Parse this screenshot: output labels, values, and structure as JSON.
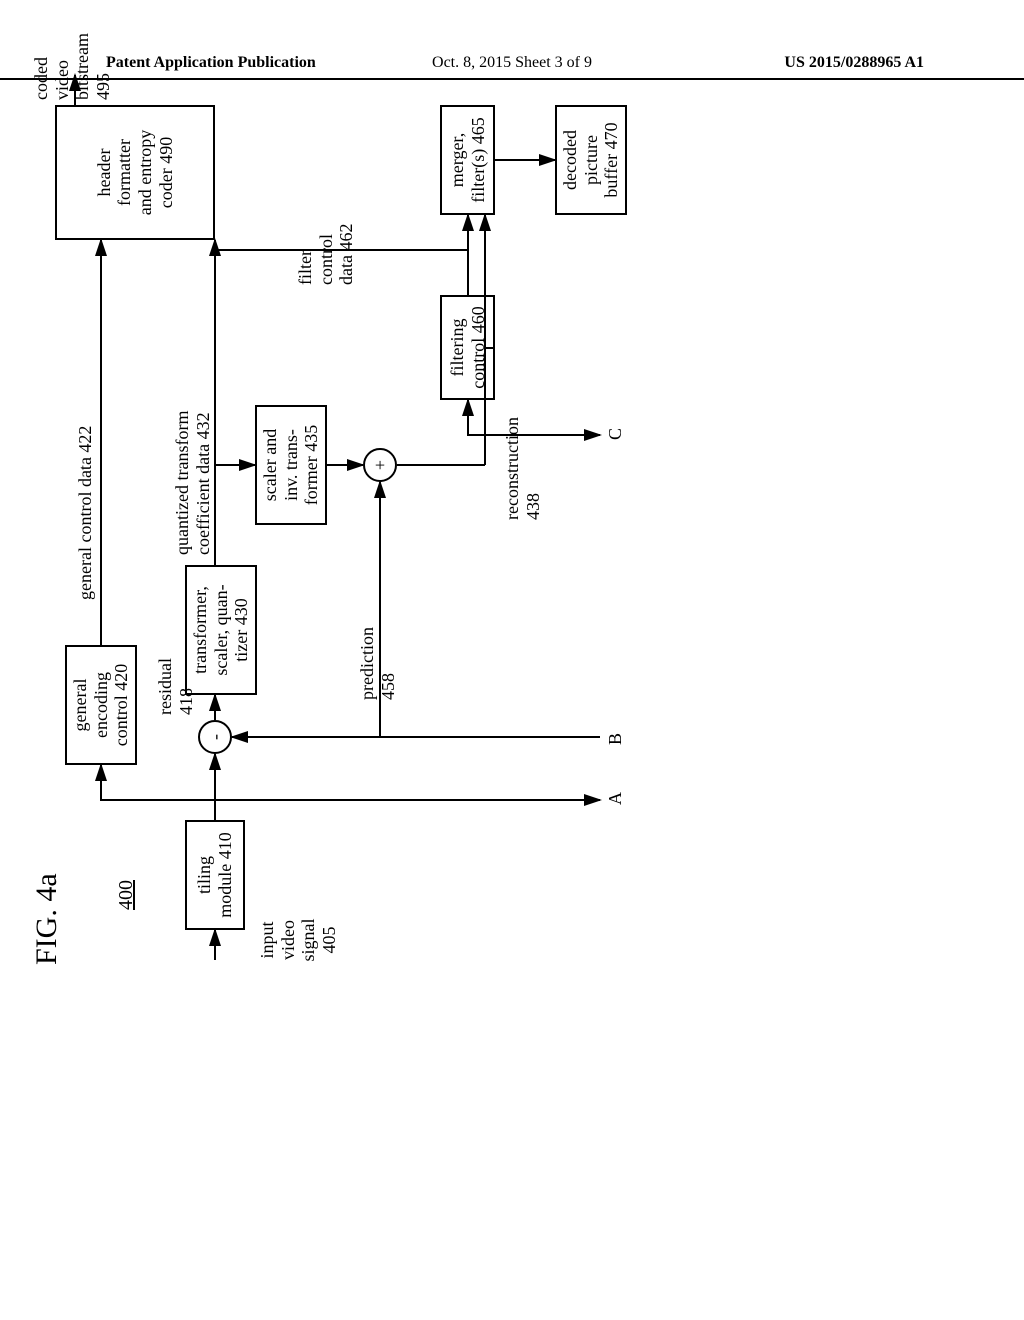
{
  "header": {
    "left": "Patent Application Publication",
    "center": "Oct. 8, 2015   Sheet 3 of 9",
    "right": "US 2015/0288965 A1"
  },
  "figure": {
    "title": "FIG. 4a",
    "ref": "400"
  },
  "blocks": {
    "tiling": "tiling\nmodule 410",
    "gec": "general\nencoding\ncontrol 420",
    "tsq": "transformer,\nscaler, quan-\ntizer 430",
    "sit": "scaler and\ninv. trans-\nformer 435",
    "fc": "filtering\ncontrol 460",
    "mf": "merger,\nfilter(s) 465",
    "dpb": "decoded\npicture\nbuffer 470",
    "hfe": "header\nformatter\nand entropy\ncoder 490"
  },
  "labels": {
    "input": "input\nvideo\nsignal\n405",
    "gcd": "general control data 422",
    "qtcd": "quantized transform\ncoefficient data 432",
    "residual": "residual\n418",
    "prediction": "prediction\n458",
    "fcd": "filter\ncontrol\ndata 462",
    "recon": "reconstruction\n438",
    "cvb": "coded\nvideo\nbitstream\n495",
    "A": "A",
    "B": "B",
    "C": "C"
  },
  "nodes": {
    "minus": "-",
    "plus": "+"
  },
  "style": {
    "page_bg": "#ffffff",
    "ink": "#000000",
    "font_family": "Times New Roman",
    "block_fontsize": 18,
    "title_fontsize": 30,
    "header_fontsize": 16,
    "line_width": 2
  }
}
